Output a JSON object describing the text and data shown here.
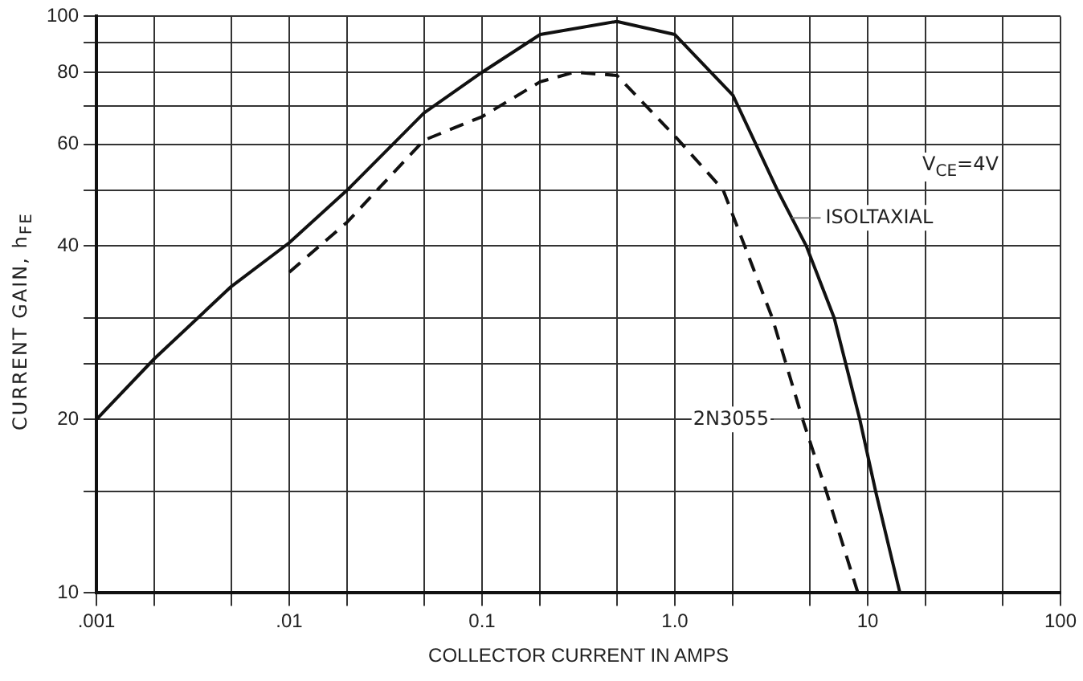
{
  "chart_data": {
    "type": "line",
    "xlabel": "COLLECTOR CURRENT IN AMPS",
    "ylabel": "CURRENT GAIN, h$_{FE}$",
    "log": "xy",
    "grid": true,
    "legend": false,
    "marker": "none",
    "xlim": [
      0.001,
      100
    ],
    "ylim": [
      10,
      100
    ],
    "xticks": [
      {
        "value": 0.001,
        "label": ".001"
      },
      {
        "value": 0.002,
        "label": null
      },
      {
        "value": 0.005,
        "label": null
      },
      {
        "value": 0.01,
        "label": ".01"
      },
      {
        "value": 0.02,
        "label": null
      },
      {
        "value": 0.05,
        "label": null
      },
      {
        "value": 0.1,
        "label": "0.1"
      },
      {
        "value": 0.2,
        "label": null
      },
      {
        "value": 0.5,
        "label": null
      },
      {
        "value": 1,
        "label": "1.0"
      },
      {
        "value": 2,
        "label": null
      },
      {
        "value": 5,
        "label": null
      },
      10,
      {
        "value": 20,
        "label": null
      },
      {
        "value": 50,
        "label": null
      },
      100
    ],
    "yticks": [
      10,
      {
        "value": 15,
        "label": null
      },
      20,
      {
        "value": 25,
        "label": null
      },
      {
        "value": 30,
        "label": null
      },
      40,
      {
        "value": 50,
        "label": null
      },
      60,
      {
        "value": 70,
        "label": null
      },
      80,
      {
        "value": 90,
        "label": null
      },
      100
    ],
    "annotations": [
      "V$_{CE}$=4V"
    ],
    "series": [
      {
        "name": "ISOLTAXIAL",
        "color": "#111111",
        "line_style": "solid",
        "x": [
          0.001,
          0.002,
          0.005,
          0.01,
          0.02,
          0.05,
          0.1,
          0.2,
          0.5,
          1,
          2,
          3.4,
          4.8,
          6.7,
          9.1,
          11,
          14.7
        ],
        "values": [
          20,
          25.5,
          34,
          40.5,
          50,
          68,
          80,
          93,
          98,
          93,
          73,
          50,
          40,
          30,
          20,
          15,
          10
        ]
      },
      {
        "name": "2N3055",
        "color": "#111111",
        "line_style": "dashed",
        "x": [
          0.01,
          0.02,
          0.05,
          0.1,
          0.2,
          0.3,
          0.5,
          1,
          1.78,
          2.3,
          3.2,
          4.6,
          6.1,
          8.9
        ],
        "values": [
          36,
          44,
          61,
          67,
          77,
          80,
          79,
          62,
          50,
          40,
          30,
          20,
          15,
          10
        ]
      }
    ]
  }
}
